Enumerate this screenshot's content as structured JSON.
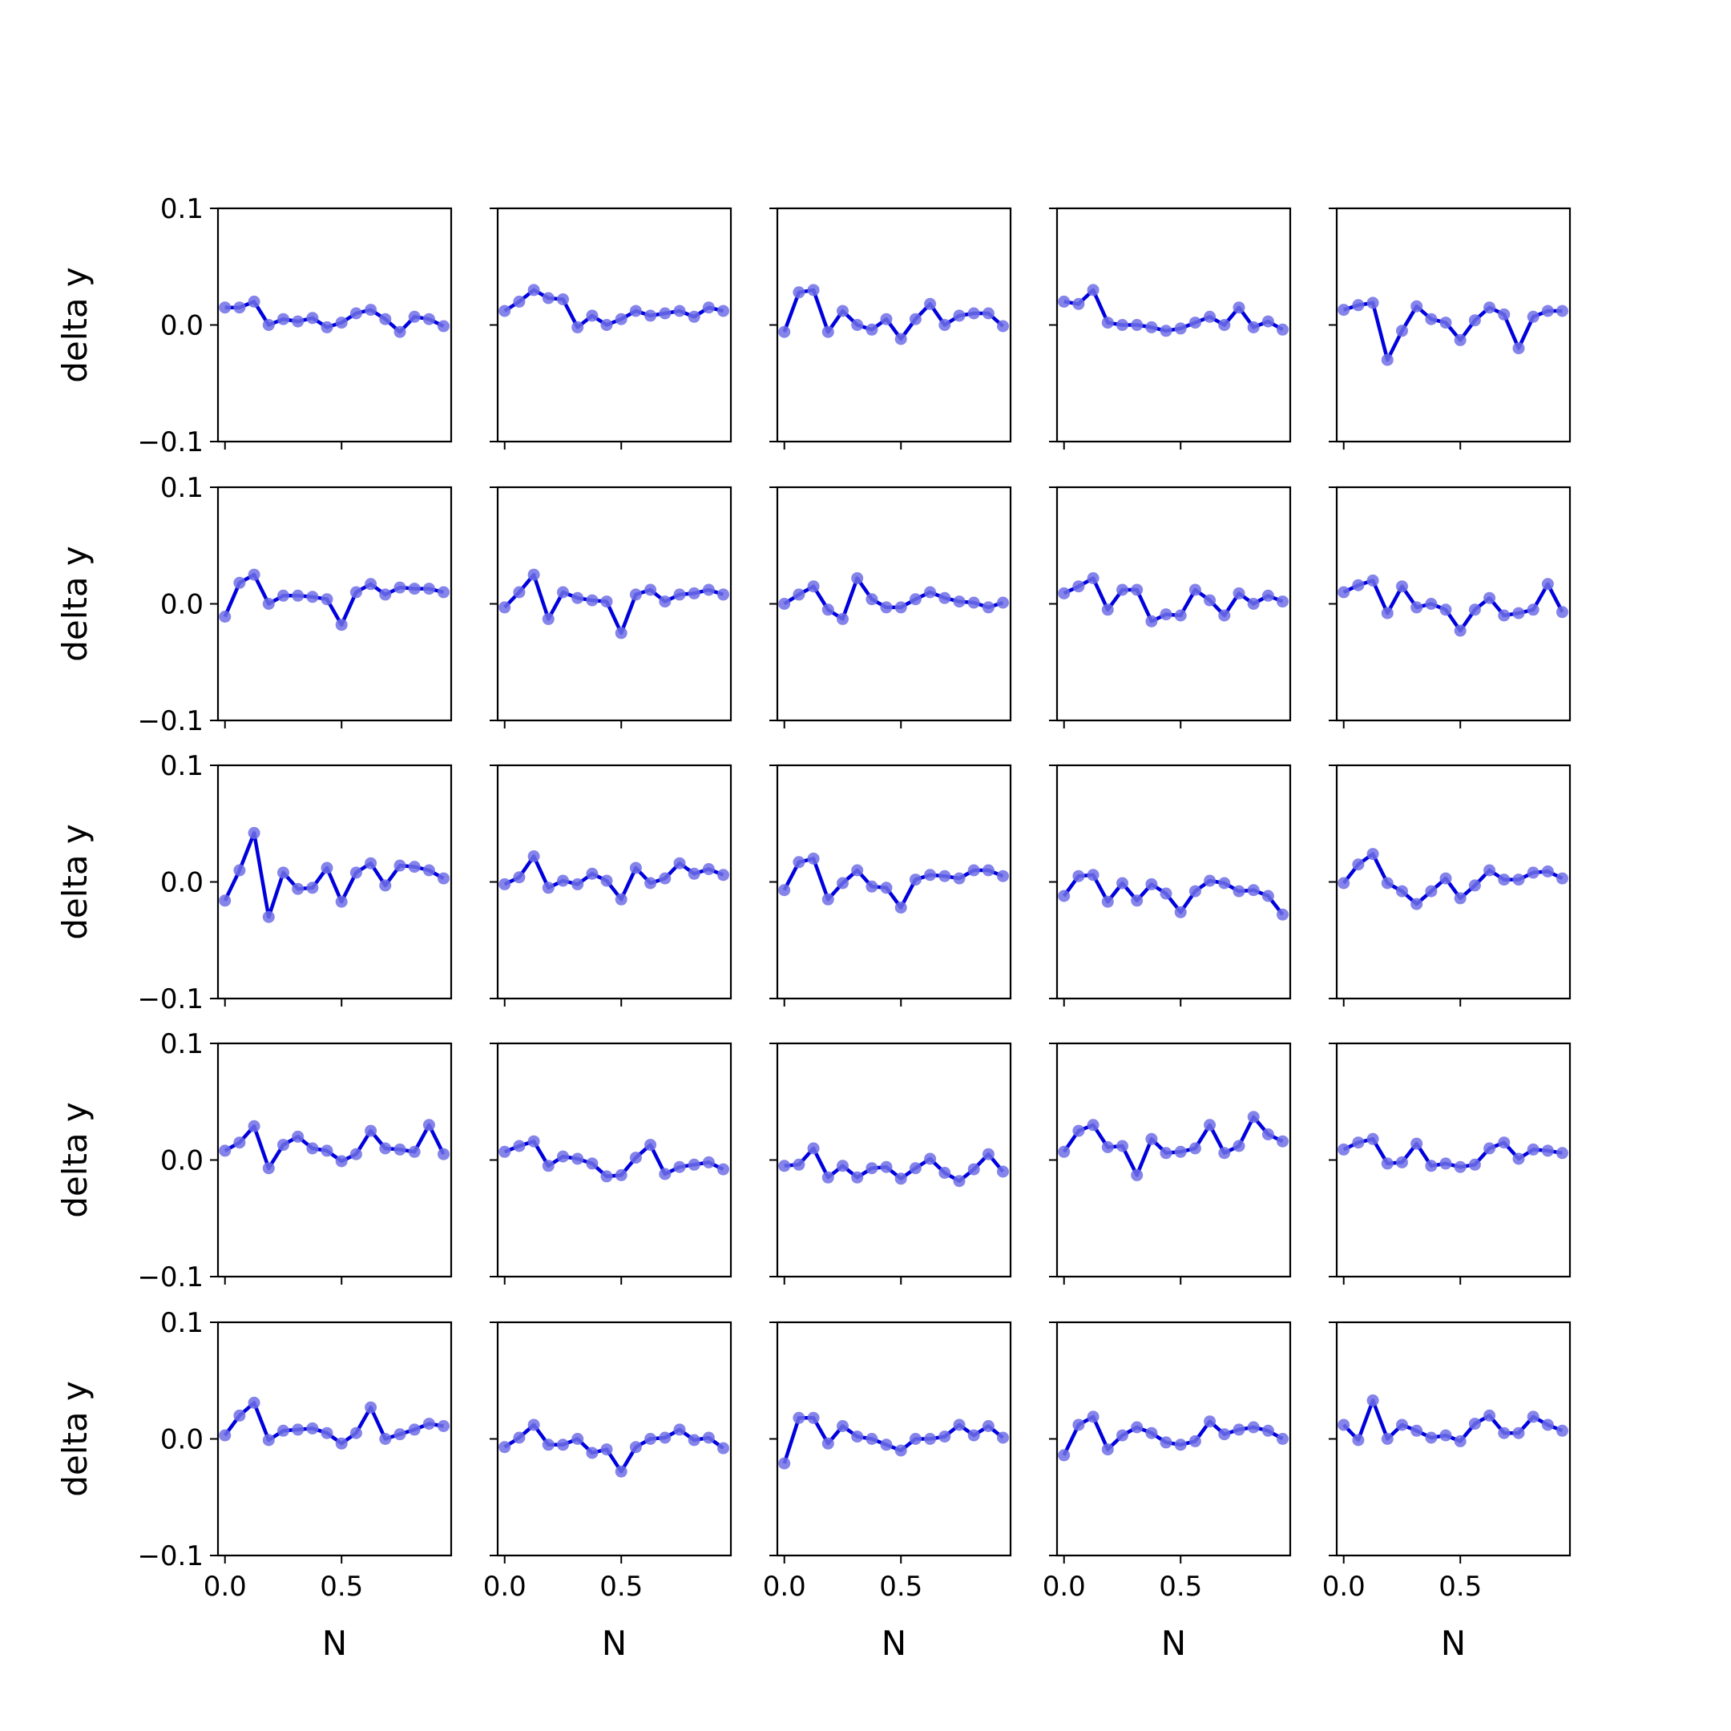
{
  "chart_data": {
    "type": "line",
    "layout": "5x5 small multiples",
    "title": "",
    "xlabel": "N",
    "ylabel": "delta y",
    "xlim": [
      -0.03,
      0.97
    ],
    "ylim": [
      -0.1,
      0.1
    ],
    "xticks": [
      0.0,
      0.5
    ],
    "xtick_labels": [
      "0.0",
      "0.5"
    ],
    "yticks": [
      -0.1,
      0.0,
      0.1
    ],
    "ytick_labels": [
      "−0.1",
      "0.0",
      "0.1"
    ],
    "grid": false,
    "line_color": "#0000dd",
    "marker_color": "#6f6fe6",
    "x": [
      0.0,
      0.0625,
      0.125,
      0.1875,
      0.25,
      0.3125,
      0.375,
      0.4375,
      0.5,
      0.5625,
      0.625,
      0.6875,
      0.75,
      0.8125,
      0.875,
      0.9375
    ],
    "panels": [
      [
        0.015,
        0.015,
        0.02,
        0.0,
        0.005,
        0.003,
        0.006,
        -0.002,
        0.002,
        0.01,
        0.013,
        0.005,
        -0.006,
        0.007,
        0.005,
        -0.001
      ],
      [
        0.012,
        0.02,
        0.03,
        0.023,
        0.022,
        -0.002,
        0.008,
        0.0,
        0.005,
        0.012,
        0.008,
        0.01,
        0.012,
        0.007,
        0.015,
        0.012
      ],
      [
        -0.006,
        0.028,
        0.03,
        -0.006,
        0.012,
        0.0,
        -0.004,
        0.005,
        -0.012,
        0.005,
        0.018,
        0.0,
        0.008,
        0.01,
        0.01,
        -0.001
      ],
      [
        0.02,
        0.018,
        0.03,
        0.002,
        0.0,
        0.0,
        -0.002,
        -0.005,
        -0.003,
        0.002,
        0.007,
        0.0,
        0.015,
        -0.002,
        0.003,
        -0.004
      ],
      [
        0.013,
        0.017,
        0.019,
        -0.03,
        -0.005,
        0.016,
        0.005,
        0.002,
        -0.013,
        0.004,
        0.015,
        0.009,
        -0.02,
        0.007,
        0.012,
        0.012
      ],
      [
        -0.011,
        0.018,
        0.025,
        0.0,
        0.007,
        0.007,
        0.006,
        0.004,
        -0.018,
        0.01,
        0.017,
        0.008,
        0.014,
        0.013,
        0.013,
        0.01
      ],
      [
        -0.003,
        0.01,
        0.025,
        -0.013,
        0.01,
        0.005,
        0.003,
        0.002,
        -0.025,
        0.008,
        0.012,
        0.002,
        0.008,
        0.009,
        0.012,
        0.008
      ],
      [
        0.0,
        0.008,
        0.015,
        -0.005,
        -0.013,
        0.022,
        0.004,
        -0.003,
        -0.003,
        0.004,
        0.01,
        0.005,
        0.002,
        0.001,
        -0.003,
        0.001
      ],
      [
        0.009,
        0.015,
        0.022,
        -0.005,
        0.012,
        0.012,
        -0.015,
        -0.009,
        -0.01,
        0.012,
        0.003,
        -0.01,
        0.009,
        0.0,
        0.007,
        0.002
      ],
      [
        0.01,
        0.016,
        0.02,
        -0.008,
        0.015,
        -0.003,
        0.0,
        -0.005,
        -0.023,
        -0.005,
        0.005,
        -0.01,
        -0.008,
        -0.005,
        0.017,
        -0.007
      ],
      [
        -0.016,
        0.01,
        0.042,
        -0.03,
        0.008,
        -0.006,
        -0.005,
        0.012,
        -0.017,
        0.008,
        0.016,
        -0.003,
        0.014,
        0.013,
        0.01,
        0.003
      ],
      [
        -0.002,
        0.004,
        0.022,
        -0.005,
        0.001,
        -0.002,
        0.007,
        0.001,
        -0.015,
        0.012,
        -0.001,
        0.003,
        0.016,
        0.007,
        0.011,
        0.006
      ],
      [
        -0.007,
        0.017,
        0.02,
        -0.015,
        -0.001,
        0.01,
        -0.004,
        -0.005,
        -0.022,
        0.002,
        0.006,
        0.005,
        0.003,
        0.01,
        0.01,
        0.005
      ],
      [
        -0.012,
        0.005,
        0.006,
        -0.017,
        -0.001,
        -0.016,
        -0.002,
        -0.01,
        -0.026,
        -0.008,
        0.001,
        -0.001,
        -0.008,
        -0.007,
        -0.012,
        -0.028
      ],
      [
        -0.001,
        0.015,
        0.024,
        -0.001,
        -0.008,
        -0.019,
        -0.008,
        0.003,
        -0.014,
        -0.003,
        0.01,
        0.002,
        0.002,
        0.008,
        0.009,
        0.003
      ],
      [
        0.008,
        0.015,
        0.029,
        -0.007,
        0.013,
        0.02,
        0.01,
        0.008,
        -0.001,
        0.005,
        0.025,
        0.01,
        0.009,
        0.007,
        0.03,
        0.005
      ],
      [
        0.007,
        0.012,
        0.016,
        -0.005,
        0.003,
        0.001,
        -0.003,
        -0.014,
        -0.013,
        0.002,
        0.013,
        -0.012,
        -0.006,
        -0.004,
        -0.002,
        -0.008
      ],
      [
        -0.005,
        -0.004,
        0.01,
        -0.015,
        -0.005,
        -0.015,
        -0.007,
        -0.006,
        -0.016,
        -0.007,
        0.001,
        -0.011,
        -0.018,
        -0.008,
        0.005,
        -0.01
      ],
      [
        0.007,
        0.025,
        0.03,
        0.011,
        0.012,
        -0.013,
        0.018,
        0.006,
        0.007,
        0.01,
        0.03,
        0.006,
        0.012,
        0.037,
        0.022,
        0.016
      ],
      [
        0.009,
        0.015,
        0.018,
        -0.003,
        -0.002,
        0.014,
        -0.005,
        -0.003,
        -0.006,
        -0.004,
        0.01,
        0.015,
        0.001,
        0.009,
        0.008,
        0.006
      ],
      [
        0.003,
        0.02,
        0.031,
        -0.001,
        0.007,
        0.008,
        0.009,
        0.005,
        -0.004,
        0.005,
        0.027,
        0.0,
        0.004,
        0.008,
        0.013,
        0.011
      ],
      [
        -0.007,
        0.001,
        0.012,
        -0.005,
        -0.005,
        0.0,
        -0.012,
        -0.009,
        -0.028,
        -0.007,
        0.0,
        0.001,
        0.008,
        -0.001,
        0.001,
        -0.008
      ],
      [
        -0.021,
        0.018,
        0.018,
        -0.004,
        0.011,
        0.002,
        0.0,
        -0.005,
        -0.01,
        0.0,
        0.0,
        0.002,
        0.012,
        0.003,
        0.011,
        0.001
      ],
      [
        -0.014,
        0.012,
        0.019,
        -0.009,
        0.003,
        0.01,
        0.005,
        -0.003,
        -0.005,
        -0.002,
        0.015,
        0.004,
        0.008,
        0.01,
        0.007,
        0.0
      ],
      [
        0.012,
        -0.001,
        0.033,
        0.0,
        0.012,
        0.007,
        0.001,
        0.003,
        -0.002,
        0.013,
        0.02,
        0.005,
        0.005,
        0.019,
        0.012,
        0.007
      ]
    ]
  }
}
